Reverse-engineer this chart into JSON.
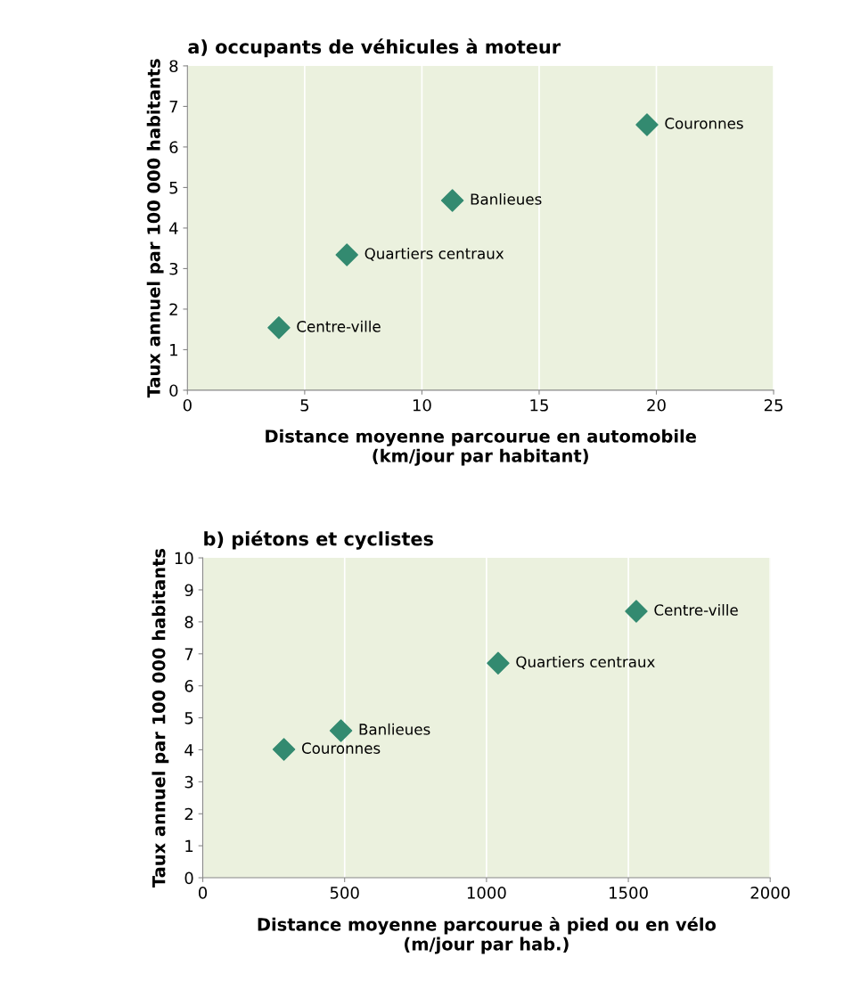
{
  "chart_data": [
    {
      "type": "scatter",
      "title": "a) occupants de véhicules à moteur",
      "xlabel": "Distance moyenne parcourue en automobile\n(km/jour par habitant)",
      "ylabel": "Taux annuel par 100 000 habitants",
      "series": [
        {
          "color": "#338a70",
          "x": [
            3.9,
            6.8,
            11.3,
            19.6
          ],
          "values": [
            1.54,
            3.34,
            4.68,
            6.55
          ]
        }
      ],
      "annotations": [
        {
          "text": "Centre-ville",
          "x": 3.9,
          "y": 1.54
        },
        {
          "text": "Quartiers centraux",
          "x": 6.8,
          "y": 3.34
        },
        {
          "text": "Banlieues",
          "x": 11.3,
          "y": 4.68
        },
        {
          "text": "Couronnes",
          "x": 19.6,
          "y": 6.55
        }
      ],
      "xlim": [
        0,
        25
      ],
      "xticks": [
        0,
        5,
        10,
        15,
        20,
        25
      ],
      "ylim": [
        0,
        8
      ],
      "yticks": [
        0,
        1,
        2,
        3,
        4,
        5,
        6,
        7,
        8
      ],
      "grid": "x",
      "marker": "diamond",
      "legend": false
    },
    {
      "type": "scatter",
      "title": "b) piétons et cyclistes",
      "xlabel": "Distance moyenne parcourue à pied ou en vélo\n(m/jour par hab.)",
      "ylabel": "Taux annuel par 100 000 habitants",
      "series": [
        {
          "color": "#338a70",
          "x": [
            286,
            487,
            1041,
            1528
          ],
          "values": [
            4.01,
            4.6,
            6.71,
            8.33
          ]
        }
      ],
      "annotations": [
        {
          "text": "Couronnes",
          "x": 286,
          "y": 4.01
        },
        {
          "text": "Banlieues",
          "x": 487,
          "y": 4.6
        },
        {
          "text": "Quartiers centraux",
          "x": 1041,
          "y": 6.71
        },
        {
          "text": "Centre-ville",
          "x": 1528,
          "y": 8.33
        }
      ],
      "xlim": [
        0,
        2000
      ],
      "xticks": [
        0,
        500,
        1000,
        1500,
        2000
      ],
      "ylim": [
        0,
        10
      ],
      "yticks": [
        0,
        1,
        2,
        3,
        4,
        5,
        6,
        7,
        8,
        9,
        10
      ],
      "grid": "x",
      "marker": "diamond",
      "legend": false
    }
  ]
}
